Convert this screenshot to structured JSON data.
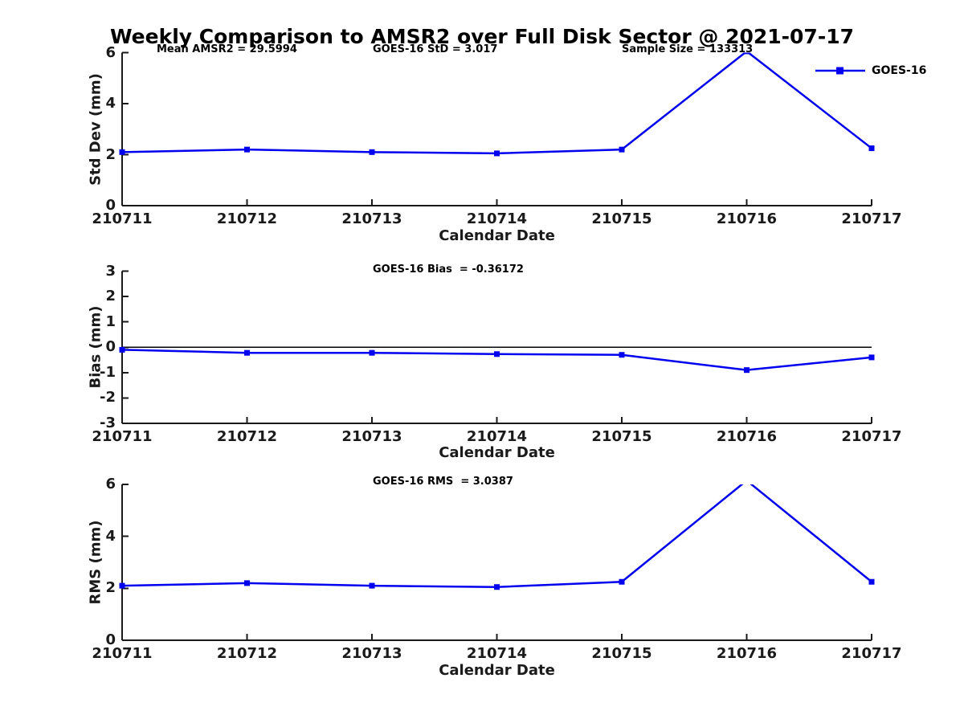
{
  "title": "Weekly Comparison to AMSR2 over Full Disk Sector @ 2021-07-17",
  "colors": {
    "line": "#0000ee",
    "axis": "#1a1a1a",
    "tick_text": "#1a1a1a",
    "zero_line": "#000000",
    "background": "#ffffff"
  },
  "legend": {
    "label": "GOES-16",
    "position": "top-right"
  },
  "chart_data": [
    {
      "id": "stddev",
      "type": "line",
      "categories": [
        "210711",
        "210712",
        "210713",
        "210714",
        "210715",
        "210716",
        "210717"
      ],
      "series": [
        {
          "name": "GOES-16",
          "values": [
            2.1,
            2.2,
            2.1,
            2.05,
            2.2,
            6.05,
            2.25
          ]
        }
      ],
      "xlabel": "Calendar Date",
      "ylabel": "Std Dev (mm)",
      "ylim": [
        0,
        6
      ],
      "yticks": [
        0,
        2,
        4,
        6
      ],
      "grid": false,
      "marker": "square",
      "annotations": [
        {
          "text": "Mean AMSR2 = 29.5994"
        },
        {
          "text": "GOES-16 StD = 3.017"
        },
        {
          "text": "Sample Size = 133313"
        }
      ]
    },
    {
      "id": "bias",
      "type": "line",
      "categories": [
        "210711",
        "210712",
        "210713",
        "210714",
        "210715",
        "210716",
        "210717"
      ],
      "series": [
        {
          "name": "GOES-16",
          "values": [
            -0.1,
            -0.22,
            -0.22,
            -0.27,
            -0.3,
            -0.9,
            -0.4
          ]
        }
      ],
      "xlabel": "Calendar Date",
      "ylabel": "Bias (mm)",
      "ylim": [
        -3,
        3
      ],
      "yticks": [
        -3,
        -2,
        -1,
        0,
        1,
        2,
        3
      ],
      "grid": false,
      "marker": "square",
      "zero_line": true,
      "annotations": [
        {
          "text": "GOES-16 Bias  = -0.36172"
        }
      ]
    },
    {
      "id": "rms",
      "type": "line",
      "categories": [
        "210711",
        "210712",
        "210713",
        "210714",
        "210715",
        "210716",
        "210717"
      ],
      "series": [
        {
          "name": "GOES-16",
          "values": [
            2.1,
            2.2,
            2.1,
            2.05,
            2.25,
            6.15,
            2.25
          ]
        }
      ],
      "xlabel": "Calendar Date",
      "ylabel": "RMS (mm)",
      "ylim": [
        0,
        6
      ],
      "yticks": [
        0,
        2,
        4,
        6
      ],
      "grid": false,
      "marker": "square",
      "annotations": [
        {
          "text": "GOES-16 RMS  = 3.0387"
        }
      ]
    }
  ]
}
